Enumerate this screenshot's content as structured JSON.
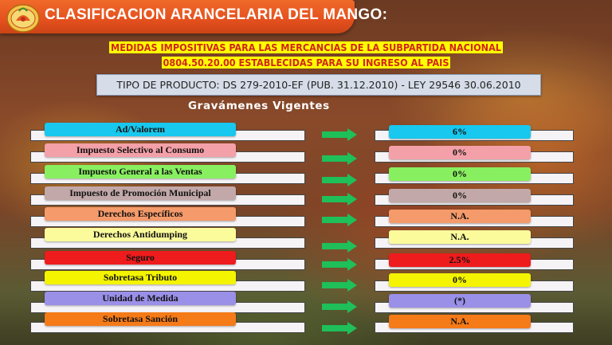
{
  "title": "CLASIFICACION ARANCELARIA DEL MANGO:",
  "subtitle_line1": "MEDIDAS IMPOSITIVAS PARA LAS MERCANCIAS DE LA SUBPARTIDA NACIONAL",
  "subtitle_line2": "0804.50.20.00 ESTABLECIDAS PARA SU INGRESO AL PAIS",
  "tipo_producto": "TIPO DE PRODUCTO: DS 279-2010-EF (PUB. 31.12.2010) - LEY 29546 30.06.2010",
  "section_heading": "Gravámenes Vigentes",
  "rows": [
    {
      "label": "Ad/Valorem",
      "value": "6%",
      "color": "#18c8ee"
    },
    {
      "label": "Impuesto Selectivo al Consumo",
      "value": "0%",
      "color": "#f4a0a8"
    },
    {
      "label": "Impuesto General a las Ventas",
      "value": "0%",
      "color": "#88f060"
    },
    {
      "label": "Impuesto de Promoción Municipal",
      "value": "0%",
      "color": "#c2a8a8"
    },
    {
      "label": "Derechos Específicos",
      "value": "N.A.",
      "color": "#f59a6a"
    },
    {
      "label": "Derechos Antidumping",
      "value": "N.A.",
      "color": "#fbfb9c"
    },
    {
      "label": "Seguro",
      "value": "2.5%",
      "color": "#ee1c1c"
    },
    {
      "label": "Sobretasa Tributo",
      "value": "0%",
      "color": "#f4f400"
    },
    {
      "label": "Unidad de Medida",
      "value": "(*)",
      "color": "#9a90e8"
    },
    {
      "label": "Sobretasa Sanción",
      "value": "N.A.",
      "color": "#f57a18"
    }
  ],
  "arrow_color": "#1fbf5a"
}
